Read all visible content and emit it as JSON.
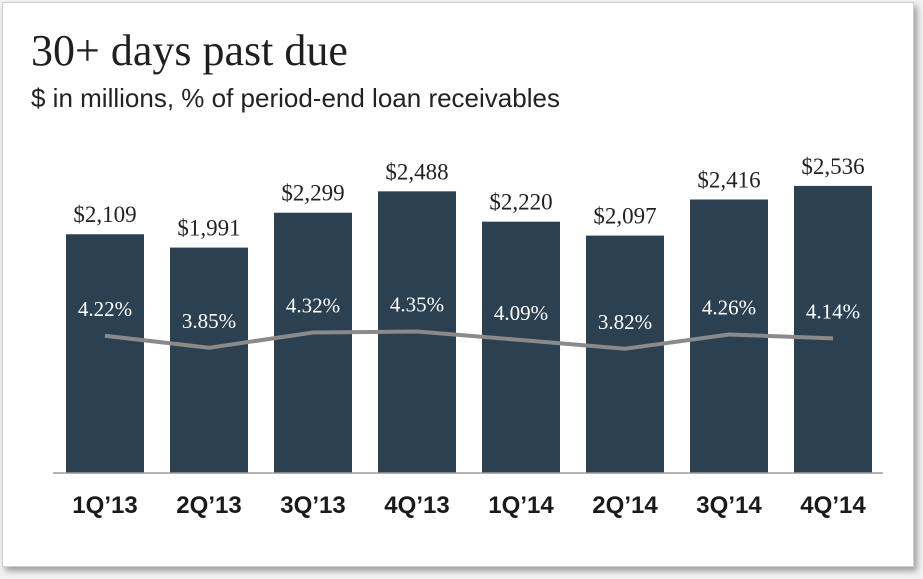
{
  "title": "30+ days past due",
  "subtitle": "$ in millions, % of period-end loan receivables",
  "colors": {
    "bar": "#2b4152",
    "line": "#8a8a8a",
    "pct_text": "#ffffff"
  },
  "chart_data": {
    "type": "bar",
    "categories": [
      "1Q’13",
      "2Q’13",
      "3Q’13",
      "4Q’13",
      "1Q’14",
      "2Q’14",
      "3Q’14",
      "4Q’14"
    ],
    "series": [
      {
        "values": [
          2109,
          1991,
          2299,
          2488,
          2220,
          2097,
          2416,
          2536
        ],
        "labels": [
          "$2,109",
          "$1,991",
          "$2,299",
          "$2,488",
          "$2,220",
          "$2,097",
          "$2,416",
          "$2,536"
        ]
      },
      {
        "type": "line",
        "values": [
          4.22,
          3.85,
          4.32,
          4.35,
          4.09,
          3.82,
          4.26,
          4.14
        ],
        "labels": [
          "4.22%",
          "3.85%",
          "4.32%",
          "4.35%",
          "4.09%",
          "3.82%",
          "4.26%",
          "4.14%"
        ]
      }
    ],
    "ylim": [
      0,
      2650
    ],
    "pct_ylim": [
      0,
      12.3
    ],
    "grid": false,
    "legend": "none"
  }
}
